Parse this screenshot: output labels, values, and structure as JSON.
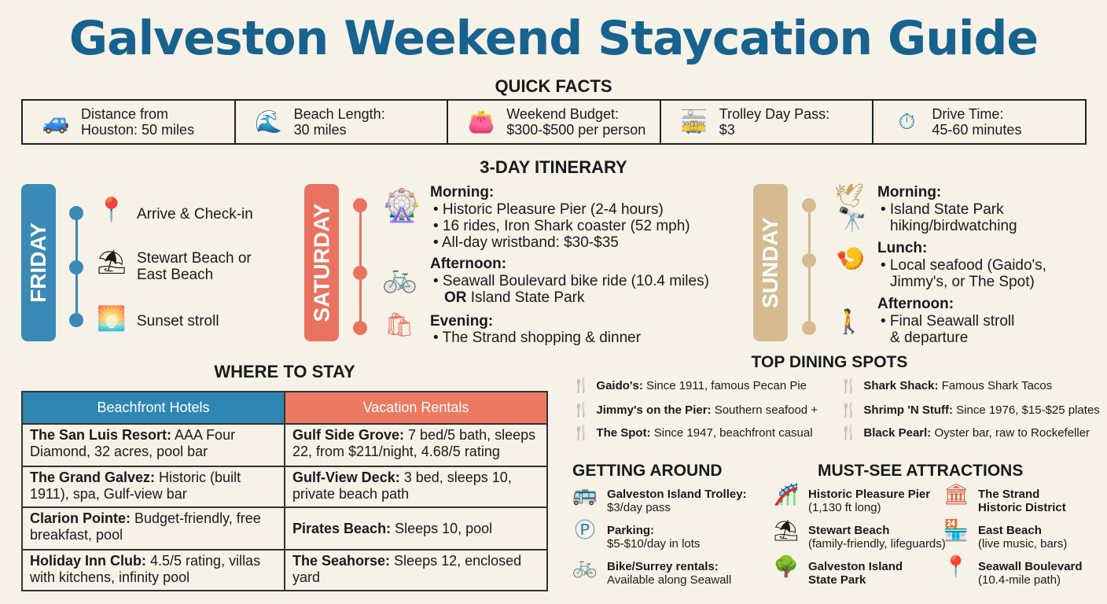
{
  "title": "Galveston Weekend Staycation Guide",
  "quick_facts": {
    "heading": "QUICK FACTS",
    "items": [
      {
        "icon": "car-icon",
        "line1": "Distance from",
        "line2": "Houston: 50 miles"
      },
      {
        "icon": "wave-icon",
        "line1": "Beach Length:",
        "line2": "30 miles"
      },
      {
        "icon": "wallet-icon",
        "line1": "Weekend Budget:",
        "line2": "$300-$500 per person"
      },
      {
        "icon": "trolley-icon",
        "line1": "Trolley Day Pass:",
        "line2": "$3"
      },
      {
        "icon": "stopwatch-icon",
        "line1": "Drive Time:",
        "line2": "45-60 minutes"
      }
    ]
  },
  "itinerary": {
    "heading": "3-DAY ITINERARY",
    "friday": {
      "label": "FRIDAY",
      "items": [
        "Arrive & Check-in",
        "Stewart Beach or",
        "East Beach",
        "Sunset stroll"
      ]
    },
    "saturday": {
      "label": "SATURDAY",
      "morning": "Morning:",
      "m1": "• Historic Pleasure Pier (2-4 hours)",
      "m2": "• 16 rides, Iron Shark coaster (52 mph)",
      "m3": "• All-day wristband: $30-$35",
      "afternoon": "Afternoon:",
      "a1": "• Seawall Boulevard bike ride (10.4 miles)",
      "a2_or": "OR",
      "a2": " Island State Park",
      "evening": "Evening:",
      "e1": "• The Strand shopping & dinner"
    },
    "sunday": {
      "label": "SUNDAY",
      "morning": "Morning:",
      "m1": "• Island State Park",
      "m2": "hiking/birdwatching",
      "lunch": "Lunch:",
      "l1": "• Local seafood (Gaido's,",
      "l2": "Jimmy's, or The Spot)",
      "afternoon": "Afternoon:",
      "a1": "• Final Seawall stroll",
      "a2": "& departure"
    }
  },
  "where_to_stay": {
    "heading": "WHERE TO STAY",
    "col1": "Beachfront Hotels",
    "col2": "Vacation Rentals",
    "rows": [
      [
        {
          "name": "The San Luis Resort:",
          "desc": " AAA Four Diamond, 32 acres, pool bar"
        },
        {
          "name": "Gulf Side Grove:",
          "desc": " 7 bed/5 bath, sleeps 22, from $211/night, 4.68/5 rating"
        }
      ],
      [
        {
          "name": "The Grand Galvez:",
          "desc": " Historic (built 1911), spa, Gulf-view bar"
        },
        {
          "name": "Gulf-View Deck:",
          "desc": " 3 bed, sleeps 10, private beach path"
        }
      ],
      [
        {
          "name": "Clarion Pointe:",
          "desc": " Budget-friendly, free breakfast, pool"
        },
        {
          "name": "Pirates Beach:",
          "desc": " Sleeps 10, pool"
        }
      ],
      [
        {
          "name": "Holiday Inn Club:",
          "desc": " 4.5/5 rating, villas with kitchens, infinity pool"
        },
        {
          "name": "The Seahorse:",
          "desc": " Sleeps 12, enclosed yard"
        }
      ]
    ]
  },
  "dining": {
    "heading": "TOP DINING SPOTS",
    "items": [
      {
        "name": "Gaido's:",
        "desc": " Since 1911, famous Pecan Pie"
      },
      {
        "name": "Jimmy's on the Pier:",
        "desc": " Southern seafood +"
      },
      {
        "name": "The Spot:",
        "desc": " Since 1947, beachfront casual"
      },
      {
        "name": "Shark Shack:",
        "desc": " Famous Shark Tacos"
      },
      {
        "name": "Shrimp 'N Stuff:",
        "desc": " Since 1976, $15-$25 plates"
      },
      {
        "name": "Black Pearl:",
        "desc": " Oyster bar, raw to Rockefeller"
      }
    ]
  },
  "getting_around": {
    "heading": "GETTING AROUND",
    "items": [
      {
        "name": "Galveston Island Trolley:",
        "desc": "$3/day pass"
      },
      {
        "name": "Parking:",
        "desc": "$5-$10/day in lots"
      },
      {
        "name": "Bike/Surrey rentals:",
        "desc": "Available along Seawall"
      }
    ]
  },
  "attractions": {
    "heading": "MUST-SEE ATTRACTIONS",
    "items": [
      {
        "name": "Historic Pleasure Pier",
        "desc": "(1,130 ft long)"
      },
      {
        "name": "Stewart Beach",
        "desc": "(family-friendly, lifeguards)"
      },
      {
        "name": "Galveston Island",
        "desc": "State Park"
      },
      {
        "name": "The Strand",
        "desc": "Historic District"
      },
      {
        "name": "East Beach",
        "desc": "(live music, bars)"
      },
      {
        "name": "Seawall Boulevard",
        "desc": "(10.4-mile path)"
      }
    ]
  },
  "colors": {
    "title": "#17628f",
    "friday": "#3a8ab5",
    "saturday": "#e9735f",
    "sunday": "#d6bb90",
    "hotels_header": "#2f86b3",
    "rentals_header": "#ec7a62"
  }
}
